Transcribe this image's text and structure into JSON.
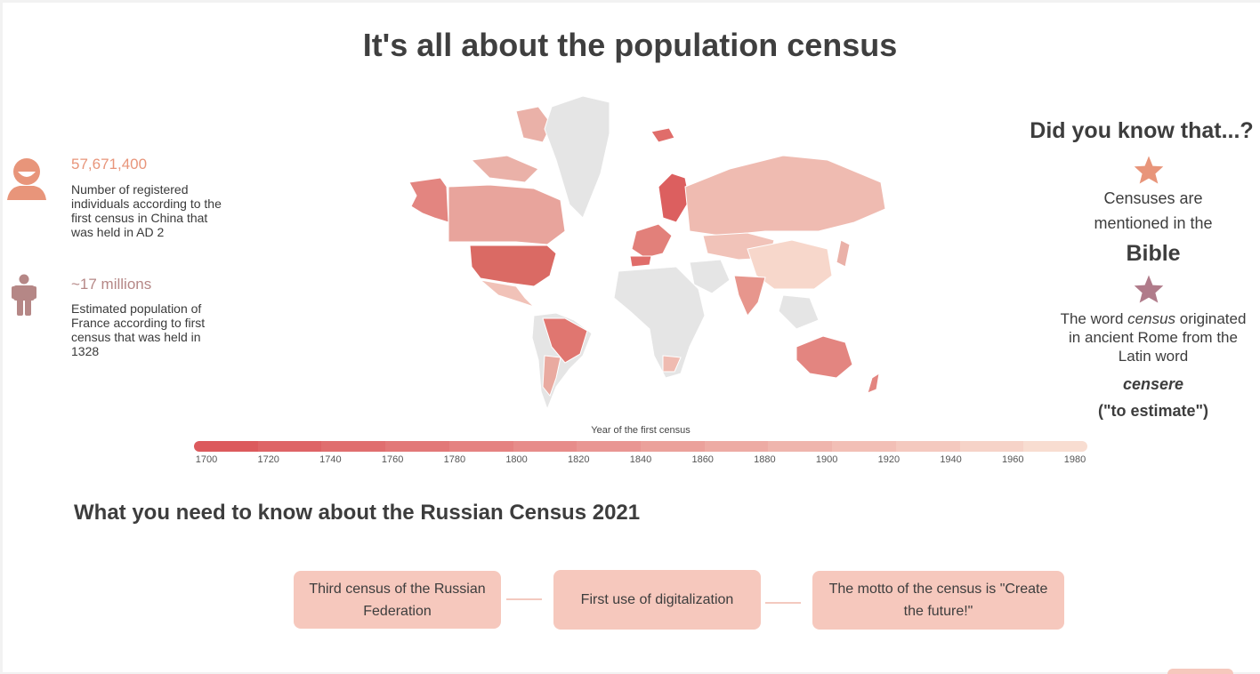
{
  "title": "It's all about the population census",
  "stats": [
    {
      "icon": "smiling-person-icon",
      "value": "57,671,400",
      "color": "#e8957a",
      "description": "Number of registered individuals according to the first census in China that was held in AD 2"
    },
    {
      "icon": "person-standing-icon",
      "value": "~17 millions",
      "color": "#b58786",
      "description": "Estimated population of France according to first census that was held in 1328"
    }
  ],
  "chart_data": {
    "type": "choropleth map",
    "title": "",
    "legend_title": "Year of the first census",
    "scale": {
      "min": 1700,
      "max": 1980,
      "color_min": "#dc5a5d",
      "color_max": "#f8ddd1"
    },
    "ticks": [
      "1700",
      "1720",
      "1740",
      "1760",
      "1780",
      "1800",
      "1820",
      "1840",
      "1860",
      "1880",
      "1900",
      "1920",
      "1940",
      "1960",
      "1980"
    ]
  },
  "did_you_know": {
    "title": "Did you know that...?",
    "fact1": {
      "line1": "Censuses are",
      "line2": "mentioned in the",
      "emphasis": "Bible",
      "star_color": "#e8957a"
    },
    "fact2": {
      "pre": "The word ",
      "word": "census",
      "post": " originated in ancient Rome from the Latin word",
      "latin": "censere",
      "meaning": "(\"to estimate\")",
      "star_color": "#b07b8a"
    }
  },
  "russian_census": {
    "title": "What you need to know about the Russian Census 2021",
    "items": [
      "Third census of the Russian Federation",
      "First use of digitalization",
      "The motto of the census is \"Create the future!\""
    ]
  }
}
